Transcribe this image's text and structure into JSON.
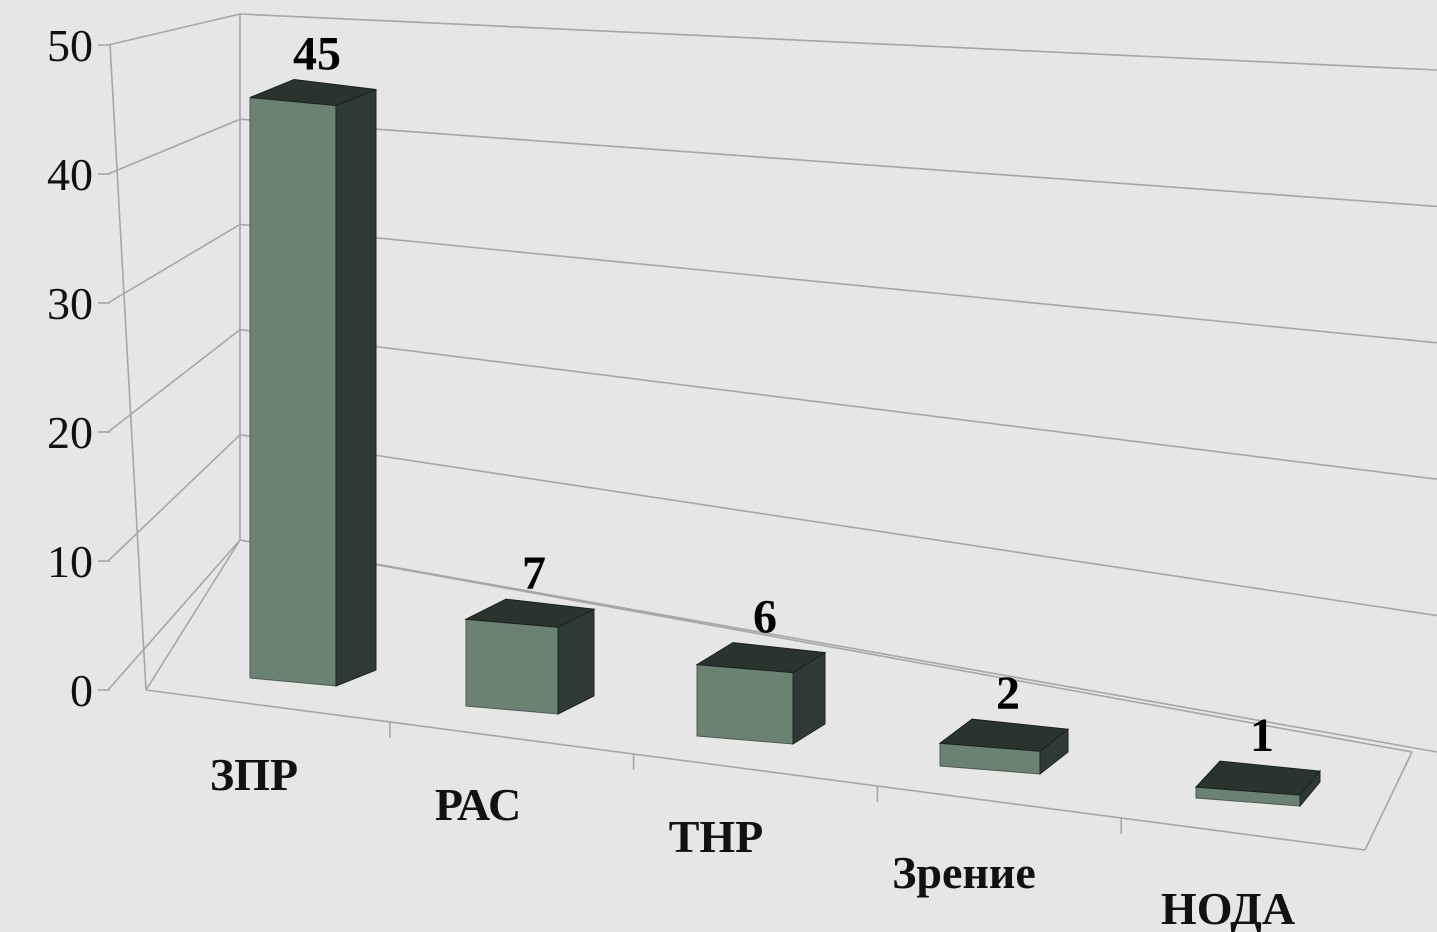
{
  "chart_data": {
    "type": "bar",
    "title": "",
    "xlabel": "",
    "ylabel": "",
    "categories": [
      "ЗПР",
      "РАС",
      "ТНР",
      "Зрение",
      "НОДА"
    ],
    "values": [
      45,
      7,
      6,
      2,
      1
    ],
    "data_labels": [
      "45",
      "7",
      "6",
      "2",
      "1"
    ],
    "ylim": [
      0,
      50
    ],
    "y_ticks": [
      "0",
      "10",
      "20",
      "30",
      "40",
      "50"
    ],
    "grid": true,
    "legend": "none",
    "style": "3d-column",
    "colors": {
      "background": "#e6e6e6",
      "bar_front": "#6b8272",
      "bar_side": "#2e3a33",
      "bar_top": "#2a342e",
      "grid": "#a6a6a6"
    }
  }
}
